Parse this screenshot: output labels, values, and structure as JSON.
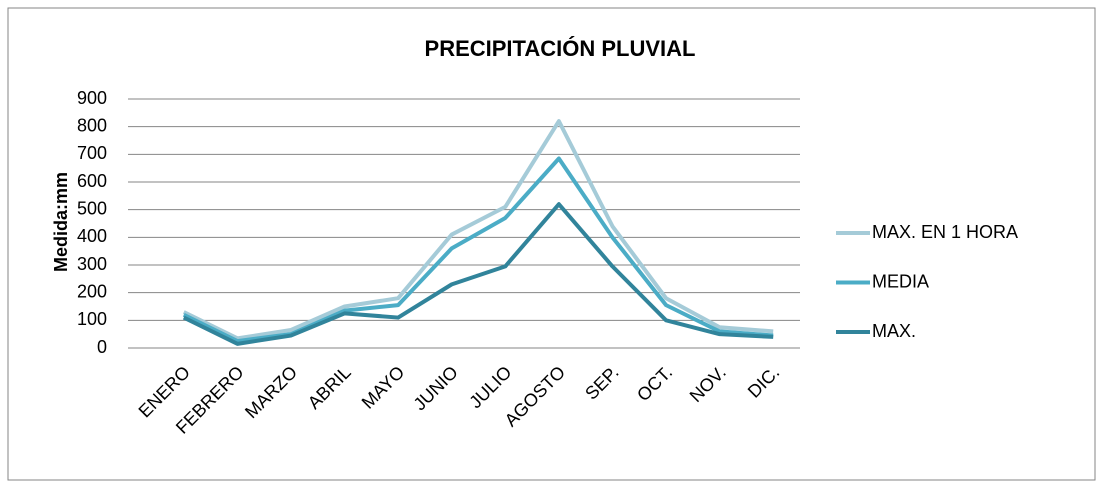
{
  "chart_data": {
    "type": "line",
    "title": "PRECIPITACIÓN PLUVIAL",
    "y_label": "Medida:mm",
    "categories": [
      "ENERO",
      "FEBRERO",
      "MARZO",
      "ABRIL",
      "MAYO",
      "JUNIO",
      "JULIO",
      "AGOSTO",
      "SEP.",
      "OCT.",
      "NOV.",
      "DIC."
    ],
    "series": [
      {
        "name": "MAX. EN 1 HORA",
        "color": "#a5cbd8",
        "values": [
          130,
          35,
          65,
          150,
          180,
          410,
          510,
          820,
          440,
          180,
          75,
          60
        ]
      },
      {
        "name": "MEDIA",
        "color": "#4bacc6",
        "values": [
          120,
          25,
          50,
          135,
          155,
          360,
          470,
          685,
          400,
          155,
          60,
          45
        ]
      },
      {
        "name": "MAX.",
        "color": "#31849b",
        "values": [
          110,
          15,
          45,
          125,
          110,
          230,
          295,
          520,
          295,
          100,
          50,
          40
        ]
      }
    ],
    "ylim": [
      0,
      900
    ],
    "yticks": [
      0,
      100,
      200,
      300,
      400,
      500,
      600,
      700,
      800,
      900
    ],
    "grid": true,
    "legend": "right"
  }
}
